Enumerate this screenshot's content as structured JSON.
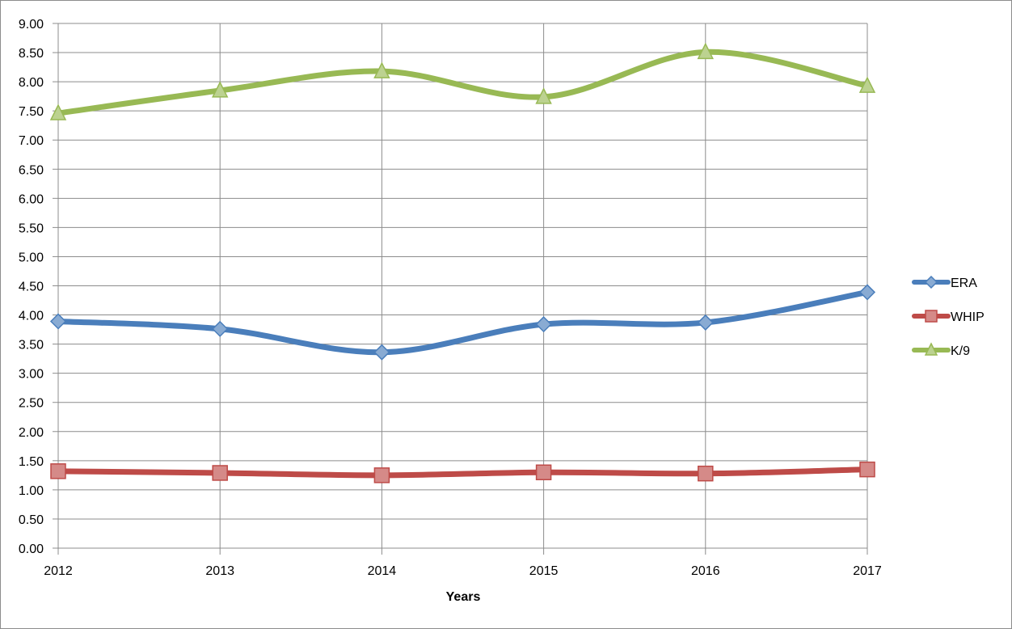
{
  "chart_data": {
    "type": "line",
    "title": "",
    "xlabel": "Years",
    "ylabel": "",
    "x": [
      "2012",
      "2013",
      "2014",
      "2015",
      "2016",
      "2017"
    ],
    "ylim": [
      0,
      9
    ],
    "ytick_labels": [
      "0.00",
      "0.50",
      "1.00",
      "1.50",
      "2.00",
      "2.50",
      "3.00",
      "3.50",
      "4.00",
      "4.50",
      "5.00",
      "5.50",
      "6.00",
      "6.50",
      "7.00",
      "7.50",
      "8.00",
      "8.50",
      "9.00"
    ],
    "grid": true,
    "smooth": true,
    "legend_position": "right",
    "series": [
      {
        "name": "ERA",
        "color": "#4a7ebb",
        "marker": "diamond",
        "values": [
          3.89,
          3.76,
          3.36,
          3.84,
          3.87,
          4.39
        ]
      },
      {
        "name": "WHIP",
        "color": "#be4b48",
        "marker": "square",
        "values": [
          1.32,
          1.29,
          1.25,
          1.3,
          1.28,
          1.35
        ]
      },
      {
        "name": "K/9",
        "color": "#98b954",
        "marker": "triangle",
        "values": [
          7.46,
          7.85,
          8.18,
          7.74,
          8.51,
          7.93
        ]
      }
    ]
  }
}
